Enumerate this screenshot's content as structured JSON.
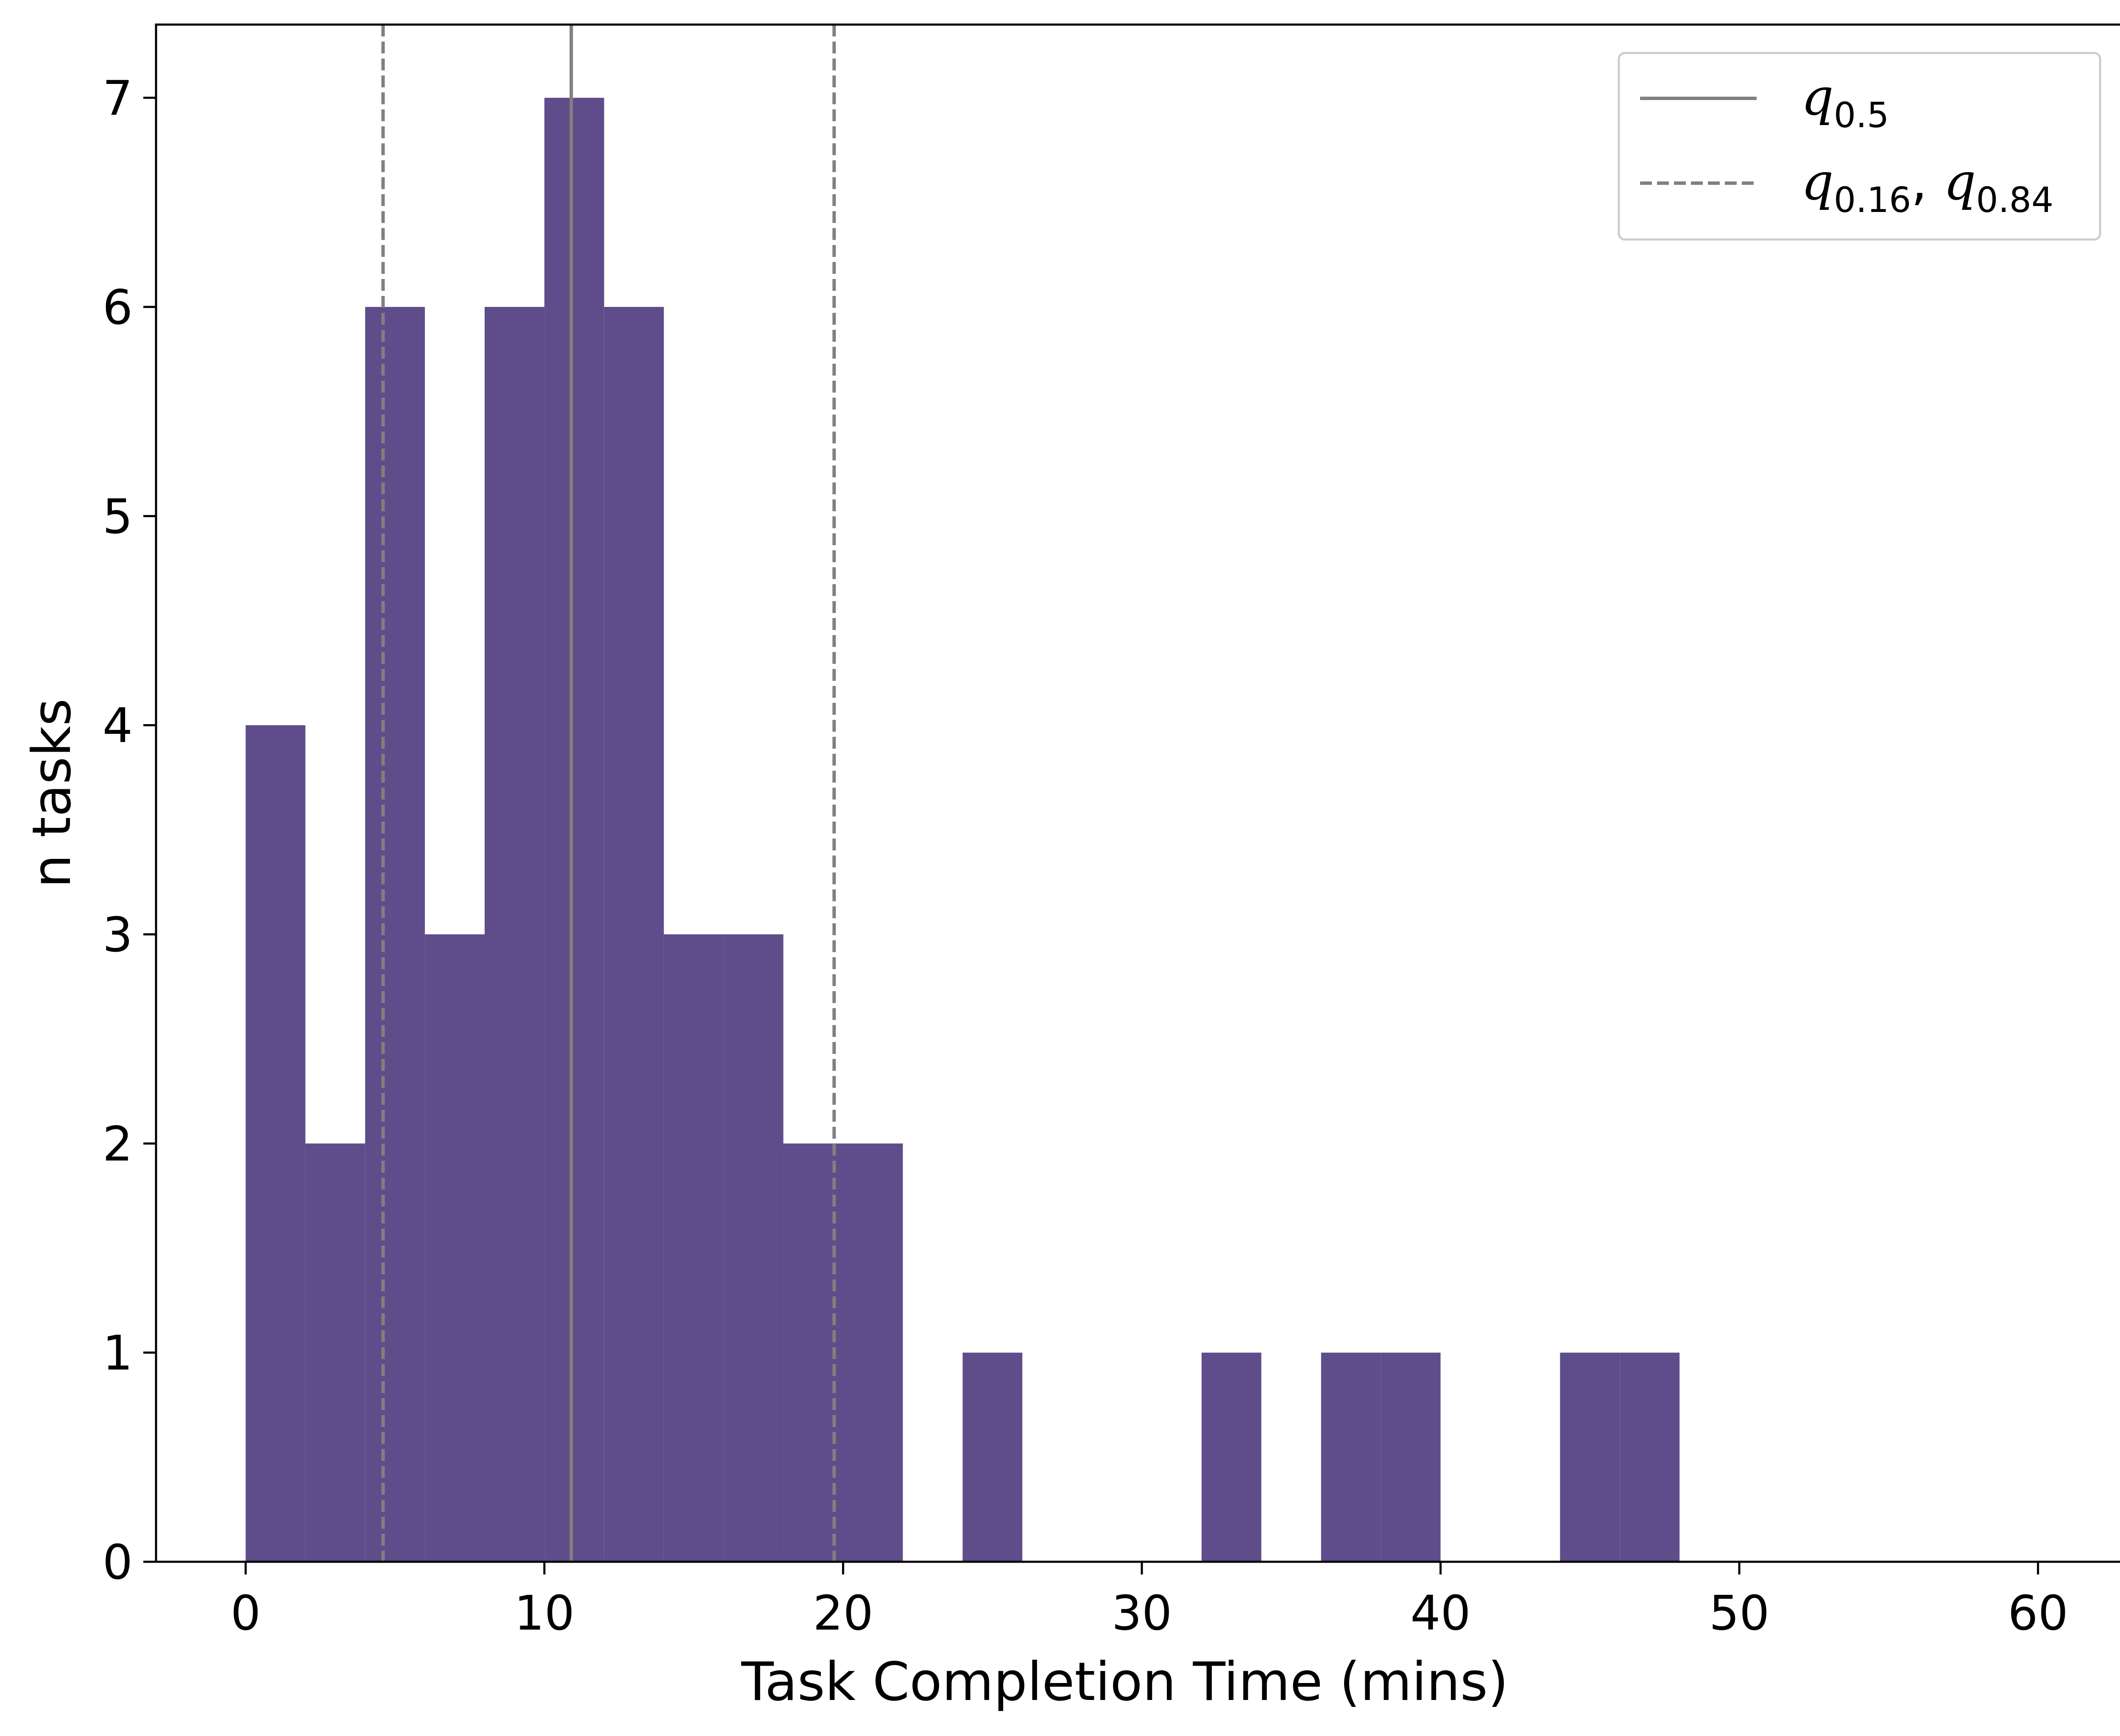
{
  "chart_data": {
    "type": "bar",
    "subtype": "histogram",
    "xlabel": "Task Completion Time (mins)",
    "ylabel": "n tasks",
    "xlim": [
      -3,
      63
    ],
    "ylim": [
      0,
      7.35
    ],
    "xticks": [
      0,
      10,
      20,
      30,
      40,
      50,
      60
    ],
    "yticks": [
      0,
      1,
      2,
      3,
      4,
      5,
      6,
      7
    ],
    "bin_width": 2,
    "bin_starts": [
      0,
      2,
      4,
      6,
      8,
      10,
      12,
      14,
      16,
      18,
      20,
      22,
      24,
      26,
      28,
      30,
      32,
      34,
      36,
      38,
      40,
      42,
      44,
      46
    ],
    "counts": [
      4,
      2,
      6,
      3,
      6,
      7,
      6,
      3,
      3,
      2,
      2,
      0,
      1,
      0,
      0,
      0,
      1,
      0,
      1,
      1,
      0,
      0,
      1,
      1
    ],
    "bar_color": "#5e4d8a",
    "quantiles": {
      "q0.16": 4.6,
      "q0.5": 10.9,
      "q0.84": 19.7
    },
    "line_color": "#808080",
    "legend": {
      "placement": "top-right",
      "entries": [
        {
          "style": "solid",
          "label_base": "q",
          "label_sub": "0.5"
        },
        {
          "style": "dashed",
          "label_base": "q",
          "label_sub": "0.16",
          "separator": ", ",
          "label2_base": "q",
          "label2_sub": "0.84"
        }
      ]
    },
    "grid": false
  }
}
